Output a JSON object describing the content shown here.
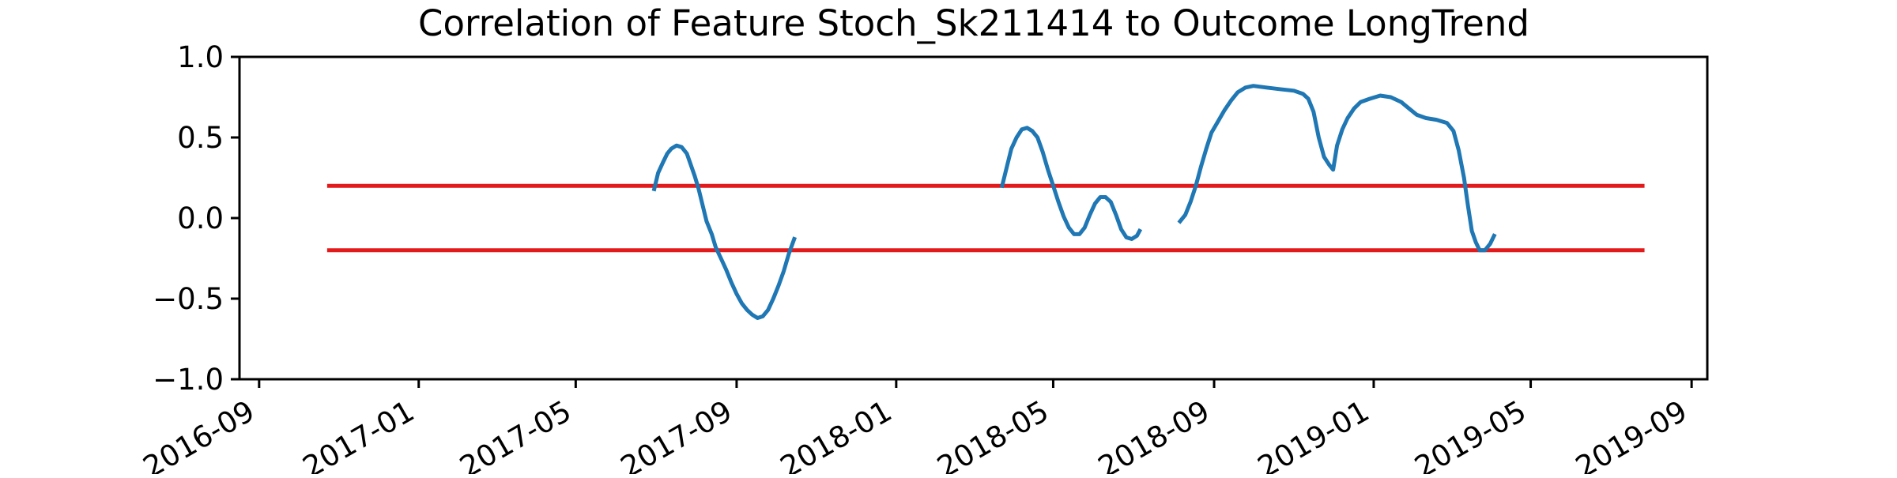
{
  "chart_data": {
    "type": "line",
    "title": "Correlation of Feature Stoch_Sk211414 to Outcome LongTrend",
    "xlabel": "",
    "ylabel": "",
    "x_axis_type": "date",
    "xlim": [
      "2016-08-17",
      "2019-09-13"
    ],
    "ylim": [
      -1.0,
      1.0
    ],
    "grid": false,
    "legend": "none",
    "x_tick_labels": [
      "2016-09",
      "2017-01",
      "2017-05",
      "2017-09",
      "2018-01",
      "2018-05",
      "2018-09",
      "2019-01",
      "2019-05",
      "2019-09"
    ],
    "x_tick_dates": [
      "2016-09-01",
      "2017-01-01",
      "2017-05-01",
      "2017-09-01",
      "2018-01-01",
      "2018-05-01",
      "2018-09-01",
      "2019-01-01",
      "2019-05-01",
      "2019-09-01"
    ],
    "y_tick_labels": [
      "−1.0",
      "−0.5",
      "0.0",
      "0.5",
      "1.0"
    ],
    "y_ticks": [
      -1.0,
      -0.5,
      0.0,
      0.5,
      1.0
    ],
    "reference_lines": [
      {
        "y": 0.2,
        "x_start": "2016-10-23",
        "x_end": "2019-07-27",
        "color": "#e31a1c"
      },
      {
        "y": -0.2,
        "x_start": "2016-10-23",
        "x_end": "2019-07-27",
        "color": "#e31a1c"
      }
    ],
    "series": [
      {
        "color": "#1f77b4",
        "segments": [
          [
            [
              "2017-06-30",
              0.18
            ],
            [
              "2017-07-03",
              0.28
            ],
            [
              "2017-07-07",
              0.35
            ],
            [
              "2017-07-10",
              0.4
            ],
            [
              "2017-07-13",
              0.43
            ],
            [
              "2017-07-17",
              0.45
            ],
            [
              "2017-07-21",
              0.44
            ],
            [
              "2017-07-25",
              0.4
            ],
            [
              "2017-07-28",
              0.33
            ],
            [
              "2017-07-31",
              0.26
            ],
            [
              "2017-08-03",
              0.18
            ],
            [
              "2017-08-06",
              0.08
            ],
            [
              "2017-08-09",
              -0.02
            ],
            [
              "2017-08-13",
              -0.1
            ],
            [
              "2017-08-16",
              -0.18
            ],
            [
              "2017-08-20",
              -0.25
            ],
            [
              "2017-08-24",
              -0.32
            ],
            [
              "2017-08-28",
              -0.4
            ],
            [
              "2017-09-01",
              -0.47
            ],
            [
              "2017-09-05",
              -0.53
            ],
            [
              "2017-09-09",
              -0.57
            ],
            [
              "2017-09-13",
              -0.6
            ],
            [
              "2017-09-17",
              -0.62
            ],
            [
              "2017-09-21",
              -0.61
            ],
            [
              "2017-09-25",
              -0.57
            ],
            [
              "2017-09-29",
              -0.5
            ],
            [
              "2017-10-03",
              -0.42
            ],
            [
              "2017-10-07",
              -0.33
            ],
            [
              "2017-10-11",
              -0.22
            ],
            [
              "2017-10-15",
              -0.13
            ]
          ],
          [
            [
              "2018-03-23",
              0.2
            ],
            [
              "2018-03-26",
              0.3
            ],
            [
              "2018-03-30",
              0.43
            ],
            [
              "2018-04-03",
              0.5
            ],
            [
              "2018-04-07",
              0.55
            ],
            [
              "2018-04-11",
              0.56
            ],
            [
              "2018-04-15",
              0.54
            ],
            [
              "2018-04-19",
              0.5
            ],
            [
              "2018-04-23",
              0.41
            ],
            [
              "2018-04-27",
              0.3
            ],
            [
              "2018-05-01",
              0.2
            ],
            [
              "2018-05-05",
              0.1
            ],
            [
              "2018-05-09",
              0.01
            ],
            [
              "2018-05-13",
              -0.06
            ],
            [
              "2018-05-17",
              -0.1
            ],
            [
              "2018-05-21",
              -0.1
            ],
            [
              "2018-05-25",
              -0.06
            ],
            [
              "2018-05-29",
              0.02
            ],
            [
              "2018-06-02",
              0.09
            ],
            [
              "2018-06-06",
              0.13
            ],
            [
              "2018-06-10",
              0.13
            ],
            [
              "2018-06-14",
              0.1
            ],
            [
              "2018-06-18",
              0.02
            ],
            [
              "2018-06-22",
              -0.07
            ],
            [
              "2018-06-26",
              -0.12
            ],
            [
              "2018-06-30",
              -0.13
            ],
            [
              "2018-07-04",
              -0.11
            ],
            [
              "2018-07-06",
              -0.08
            ]
          ],
          [
            [
              "2018-08-06",
              -0.02
            ],
            [
              "2018-08-10",
              0.02
            ],
            [
              "2018-08-14",
              0.1
            ],
            [
              "2018-08-18",
              0.2
            ],
            [
              "2018-08-22",
              0.32
            ],
            [
              "2018-08-26",
              0.43
            ],
            [
              "2018-08-30",
              0.53
            ],
            [
              "2018-09-04",
              0.6
            ],
            [
              "2018-09-09",
              0.67
            ],
            [
              "2018-09-14",
              0.73
            ],
            [
              "2018-09-19",
              0.78
            ],
            [
              "2018-09-25",
              0.81
            ],
            [
              "2018-10-01",
              0.82
            ],
            [
              "2018-10-11",
              0.81
            ],
            [
              "2018-10-21",
              0.8
            ],
            [
              "2018-11-01",
              0.79
            ],
            [
              "2018-11-08",
              0.77
            ],
            [
              "2018-11-12",
              0.74
            ],
            [
              "2018-11-16",
              0.66
            ],
            [
              "2018-11-20",
              0.5
            ],
            [
              "2018-11-24",
              0.38
            ],
            [
              "2018-11-28",
              0.33
            ],
            [
              "2018-12-01",
              0.3
            ],
            [
              "2018-12-04",
              0.45
            ],
            [
              "2018-12-08",
              0.55
            ],
            [
              "2018-12-12",
              0.62
            ],
            [
              "2018-12-17",
              0.68
            ],
            [
              "2018-12-22",
              0.72
            ],
            [
              "2018-12-29",
              0.74
            ],
            [
              "2019-01-06",
              0.76
            ],
            [
              "2019-01-14",
              0.75
            ],
            [
              "2019-01-22",
              0.72
            ],
            [
              "2019-01-28",
              0.68
            ],
            [
              "2019-02-03",
              0.64
            ],
            [
              "2019-02-10",
              0.62
            ],
            [
              "2019-02-18",
              0.61
            ],
            [
              "2019-02-26",
              0.59
            ],
            [
              "2019-03-03",
              0.54
            ],
            [
              "2019-03-07",
              0.42
            ],
            [
              "2019-03-11",
              0.25
            ],
            [
              "2019-03-14",
              0.08
            ],
            [
              "2019-03-17",
              -0.08
            ],
            [
              "2019-03-20",
              -0.15
            ],
            [
              "2019-03-23",
              -0.2
            ],
            [
              "2019-03-27",
              -0.2
            ],
            [
              "2019-03-31",
              -0.16
            ],
            [
              "2019-04-03",
              -0.11
            ]
          ]
        ]
      }
    ]
  }
}
